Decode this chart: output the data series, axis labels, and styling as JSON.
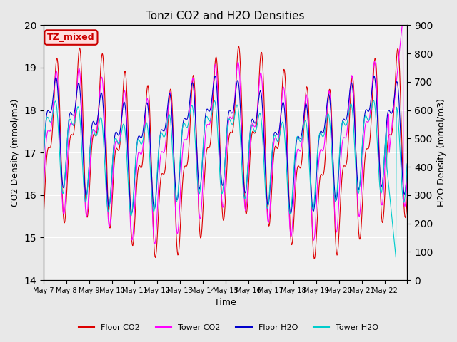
{
  "title": "Tonzi CO2 and H2O Densities",
  "xlabel": "Time",
  "ylabel_left": "CO2 Density (mmol/m3)",
  "ylabel_right": "H2O Density (mmol/m3)",
  "ylim_left": [
    14.0,
    20.0
  ],
  "ylim_right": [
    0,
    900
  ],
  "annotation_text": "TZ_mixed",
  "annotation_color": "#cc0000",
  "annotation_bg": "#ffdddd",
  "colors": {
    "floor_co2": "#dd0000",
    "tower_co2": "#ff00ff",
    "floor_h2o": "#0000cc",
    "tower_h2o": "#00cccc"
  },
  "legend_labels": [
    "Floor CO2",
    "Tower CO2",
    "Floor H2O",
    "Tower H2O"
  ],
  "x_tick_labels": [
    "May 7",
    "May 8",
    "May 9",
    "May 10",
    "May 11",
    "May 12",
    "May 13",
    "May 14",
    "May 15",
    "May 16",
    "May 17",
    "May 18",
    "May 19",
    "May 20",
    "May 21",
    "May 22",
    ""
  ],
  "background_color": "#e8e8e8",
  "plot_bg_color": "#f0f0f0"
}
